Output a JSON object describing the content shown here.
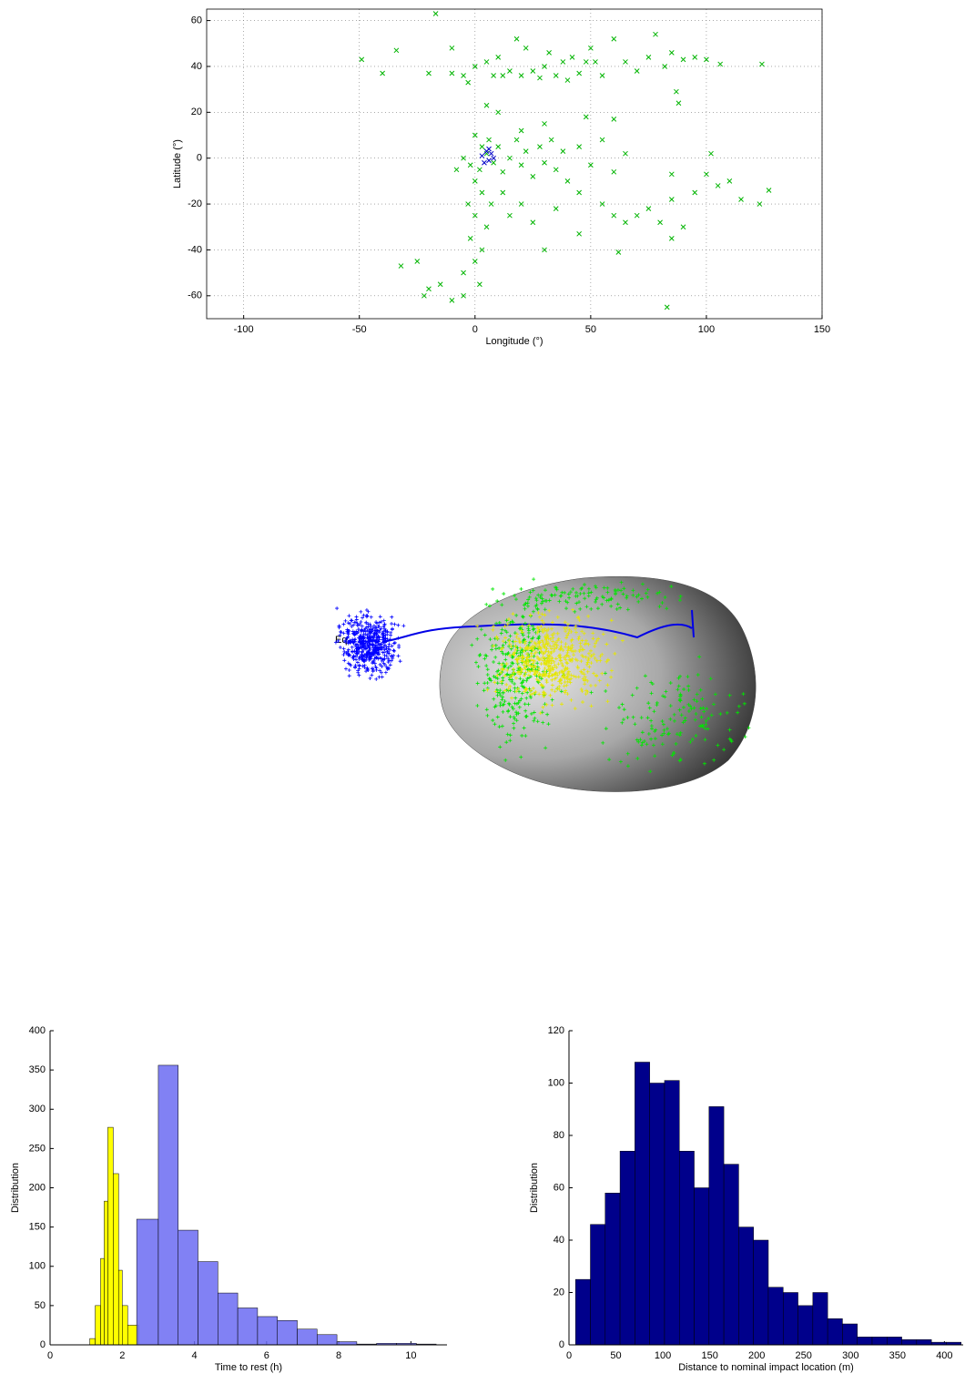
{
  "chart_data": [
    {
      "type": "scatter",
      "xlabel": "Longitude (°)",
      "ylabel": "Latitude (°)",
      "xlim": [
        -116,
        150
      ],
      "ylim": [
        -70,
        65
      ],
      "xticks": [
        -100,
        -50,
        0,
        50,
        100,
        150
      ],
      "yticks": [
        -60,
        -40,
        -20,
        0,
        20,
        40,
        60
      ],
      "grid": true,
      "series": [
        {
          "color": "#00b400",
          "marker": "x",
          "x": [
            -49,
            -40,
            -34,
            -17,
            -20,
            -10,
            -10,
            -5,
            0,
            -3,
            5,
            8,
            10,
            12,
            15,
            18,
            20,
            22,
            25,
            28,
            30,
            32,
            35,
            38,
            40,
            42,
            45,
            48,
            50,
            52,
            55,
            60,
            65,
            70,
            75,
            78,
            82,
            85,
            88,
            90,
            95,
            100,
            106,
            124,
            87,
            0,
            3,
            6,
            -5,
            -2,
            2,
            5,
            8,
            10,
            12,
            15,
            18,
            20,
            22,
            25,
            28,
            30,
            33,
            35,
            38,
            40,
            45,
            50,
            55,
            60,
            65,
            -8,
            0,
            3,
            -3,
            0,
            5,
            -2,
            3,
            0,
            -5,
            2,
            -5,
            -22,
            -32,
            -25,
            -15,
            7,
            12,
            20,
            15,
            30,
            25,
            35,
            45,
            55,
            60,
            65,
            70,
            75,
            80,
            85,
            90,
            95,
            100,
            105,
            110,
            115,
            123,
            127,
            85,
            83,
            85,
            102,
            62,
            45,
            20,
            10,
            5,
            30,
            48,
            60,
            -20,
            -10
          ],
          "values": [
            43,
            37,
            47,
            63,
            37,
            37,
            48,
            36,
            40,
            33,
            42,
            36,
            44,
            36,
            38,
            52,
            36,
            48,
            38,
            35,
            40,
            46,
            36,
            42,
            34,
            44,
            37,
            42,
            48,
            42,
            36,
            52,
            42,
            38,
            44,
            54,
            40,
            46,
            24,
            43,
            44,
            43,
            41,
            41,
            29,
            10,
            5,
            8,
            0,
            -3,
            -5,
            2,
            -2,
            5,
            -6,
            0,
            8,
            -3,
            3,
            -8,
            5,
            -2,
            8,
            -5,
            3,
            -10,
            5,
            -3,
            8,
            -6,
            2,
            -5,
            -10,
            -15,
            -20,
            -25,
            -30,
            -35,
            -40,
            -45,
            -50,
            -55,
            -60,
            -60,
            -47,
            -45,
            -55,
            -20,
            -15,
            -20,
            -25,
            -40,
            -28,
            -22,
            -15,
            -20,
            -25,
            -28,
            -25,
            -22,
            -28,
            -18,
            -30,
            -15,
            -7,
            -12,
            -10,
            -18,
            -20,
            -14,
            -35,
            -65,
            -7,
            2,
            -41,
            -33,
            12,
            20,
            23,
            15,
            18,
            17,
            -57,
            -62
          ]
        },
        {
          "color": "#0000c8",
          "marker": "x",
          "x": [
            3,
            5,
            6,
            7,
            8,
            4,
            6
          ],
          "values": [
            1,
            3,
            -1,
            2,
            0,
            -2,
            4
          ]
        }
      ]
    },
    {
      "type": "histogram",
      "xlabel": "Time to rest (h)",
      "ylabel": "Distribution",
      "xlim": [
        0,
        11
      ],
      "ylim": [
        0,
        400
      ],
      "xticks": [
        0,
        2,
        4,
        6,
        8,
        10
      ],
      "yticks": [
        0,
        50,
        100,
        150,
        200,
        250,
        300,
        350,
        400
      ],
      "series": [
        {
          "color": "#ffff00",
          "opacity": 1,
          "bins": [
            1.1,
            1.25,
            1.4,
            1.5,
            1.6,
            1.75,
            1.9,
            2.0,
            2.15,
            2.45
          ],
          "values": [
            8,
            50,
            110,
            183,
            277,
            218,
            95,
            50,
            25
          ]
        },
        {
          "color": "#6b6bf2",
          "opacity": 0.85,
          "bins": [
            2.4,
            3.0,
            3.55,
            4.1,
            4.65,
            5.2,
            5.75,
            6.3,
            6.85,
            7.4,
            7.95,
            8.5,
            9.05,
            9.6,
            10.15,
            10.7
          ],
          "values": [
            160,
            356,
            146,
            106,
            66,
            47,
            36,
            31,
            20,
            13,
            4,
            1,
            2,
            2,
            1
          ]
        }
      ]
    },
    {
      "type": "histogram",
      "xlabel": "Distance to nominal impact location (m)",
      "ylabel": "Distribution",
      "xlim": [
        0,
        420
      ],
      "ylim": [
        0,
        120
      ],
      "xticks": [
        0,
        50,
        100,
        150,
        200,
        250,
        300,
        350,
        400
      ],
      "yticks": [
        0,
        20,
        40,
        60,
        80,
        100,
        120
      ],
      "series": [
        {
          "color": "#00008b",
          "opacity": 1,
          "bins": [
            7,
            22.8,
            38.6,
            54.4,
            70.2,
            86,
            101.8,
            117.6,
            133.4,
            149.2,
            165,
            180.8,
            196.6,
            212.4,
            228.2,
            244,
            259.8,
            275.6,
            291.4,
            307.2,
            323,
            338.8,
            354.6,
            370.4,
            386.2,
            402,
            417.8
          ],
          "values": [
            25,
            46,
            58,
            74,
            108,
            100,
            101,
            74,
            60,
            91,
            69,
            45,
            40,
            22,
            20,
            15,
            20,
            10,
            8,
            3,
            3,
            3,
            2,
            2,
            1,
            1
          ]
        }
      ]
    }
  ],
  "rendering": {
    "label": "Eq"
  }
}
